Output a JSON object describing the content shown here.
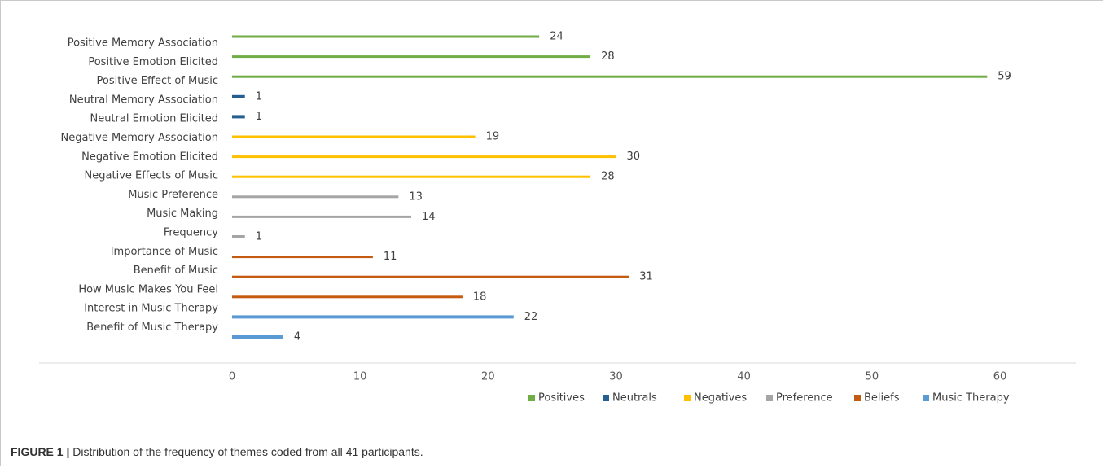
{
  "chart_data": {
    "type": "bar",
    "orientation": "horizontal",
    "categories": [
      "Positive Memory Association",
      "Positive Emotion Elicited",
      "Positive Effect of Music",
      "Neutral Memory Association",
      "Neutral Emotion Elicited",
      "Negative Memory Association",
      "Negative Emotion Elicited",
      "Negative Effects of Music",
      "Music Preference",
      "Music Making",
      "Frequency",
      "Importance of Music",
      "Benefit of Music",
      "How Music Makes You Feel",
      "Interest in Music Therapy",
      "Benefit of Music Therapy"
    ],
    "values": [
      24,
      28,
      59,
      1,
      1,
      19,
      30,
      28,
      13,
      14,
      1,
      11,
      31,
      18,
      22,
      4
    ],
    "groups": [
      "Positives",
      "Positives",
      "Positives",
      "Neutrals",
      "Neutrals",
      "Negatives",
      "Negatives",
      "Negatives",
      "Preference",
      "Preference",
      "Preference",
      "Beliefs",
      "Beliefs",
      "Beliefs",
      "Music Therapy",
      "Music Therapy"
    ],
    "series": [
      {
        "name": "Positives",
        "color": "#70ad47"
      },
      {
        "name": "Neutrals",
        "color": "#255e91"
      },
      {
        "name": "Negatives",
        "color": "#ffc000"
      },
      {
        "name": "Preference",
        "color": "#a5a5a5"
      },
      {
        "name": "Beliefs",
        "color": "#c55a11"
      },
      {
        "name": "Music Therapy",
        "color": "#5b9bd5"
      }
    ],
    "xlim": [
      0,
      60
    ],
    "xticks": [
      0,
      10,
      20,
      30,
      40,
      50,
      60
    ],
    "grid": false,
    "legend_position": "bottom-right",
    "title": "",
    "xlabel": "",
    "ylabel": ""
  },
  "caption": {
    "label": "FIGURE 1 |",
    "text": " Distribution of the frequency of themes coded from all 41 participants."
  }
}
